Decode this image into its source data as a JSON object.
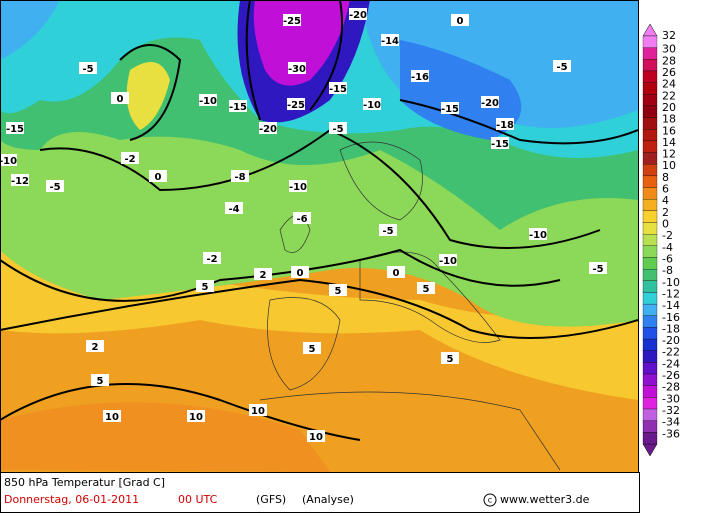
{
  "title": "850 hPa Temperatur [Grad C]",
  "date": "Donnerstag, 06-01-2011",
  "time": "00 UTC",
  "model": "(GFS)",
  "run": "(Analyse)",
  "source": "www.wetter3.de",
  "scale": [
    {
      "value": 32,
      "color": "#f07ef0"
    },
    {
      "value": 30,
      "color": "#e0209a"
    },
    {
      "value": 28,
      "color": "#d0105a"
    },
    {
      "value": 26,
      "color": "#c00020"
    },
    {
      "value": 24,
      "color": "#b00010"
    },
    {
      "value": 22,
      "color": "#a00010"
    },
    {
      "value": 20,
      "color": "#900010"
    },
    {
      "value": 18,
      "color": "#a01010"
    },
    {
      "value": 16,
      "color": "#b01810"
    },
    {
      "value": 14,
      "color": "#c02010"
    },
    {
      "value": 12,
      "color": "#a02020"
    },
    {
      "value": 10,
      "color": "#d04010"
    },
    {
      "value": 8,
      "color": "#e86010"
    },
    {
      "value": 6,
      "color": "#f08a18"
    },
    {
      "value": 4,
      "color": "#f4b020"
    },
    {
      "value": 2,
      "color": "#f8d030"
    },
    {
      "value": 0,
      "color": "#e8e040"
    },
    {
      "value": -2,
      "color": "#b8e050"
    },
    {
      "value": -4,
      "color": "#8cd858"
    },
    {
      "value": -6,
      "color": "#60cc50"
    },
    {
      "value": -8,
      "color": "#40c070"
    },
    {
      "value": -10,
      "color": "#30c0a0"
    },
    {
      "value": -12,
      "color": "#30d0d8"
    },
    {
      "value": -14,
      "color": "#40b0f0"
    },
    {
      "value": -16,
      "color": "#3080f0"
    },
    {
      "value": -18,
      "color": "#2050e8"
    },
    {
      "value": -20,
      "color": "#1830d0"
    },
    {
      "value": -22,
      "color": "#3018c0"
    },
    {
      "value": -24,
      "color": "#6010c8"
    },
    {
      "value": -26,
      "color": "#9010d0"
    },
    {
      "value": -28,
      "color": "#c010d8"
    },
    {
      "value": -30,
      "color": "#e020e0"
    },
    {
      "value": -32,
      "color": "#c060e0"
    },
    {
      "value": -34,
      "color": "#9030b0"
    },
    {
      "value": -36,
      "color": "#6a1a8a"
    }
  ],
  "contour_labels": [
    -5,
    0,
    -15,
    -10,
    -5,
    0,
    -10,
    -15,
    -20,
    -25,
    -30,
    -25,
    -20,
    -15,
    -10,
    -5,
    -15,
    -20,
    -15,
    -10,
    -5,
    -10,
    -5,
    0,
    5,
    0,
    -5,
    -10,
    5,
    5,
    5,
    10,
    10,
    10,
    10,
    5,
    5,
    0,
    -2,
    -2,
    -4,
    -6,
    -8,
    -12,
    -14,
    -16,
    -18,
    2,
    2
  ]
}
